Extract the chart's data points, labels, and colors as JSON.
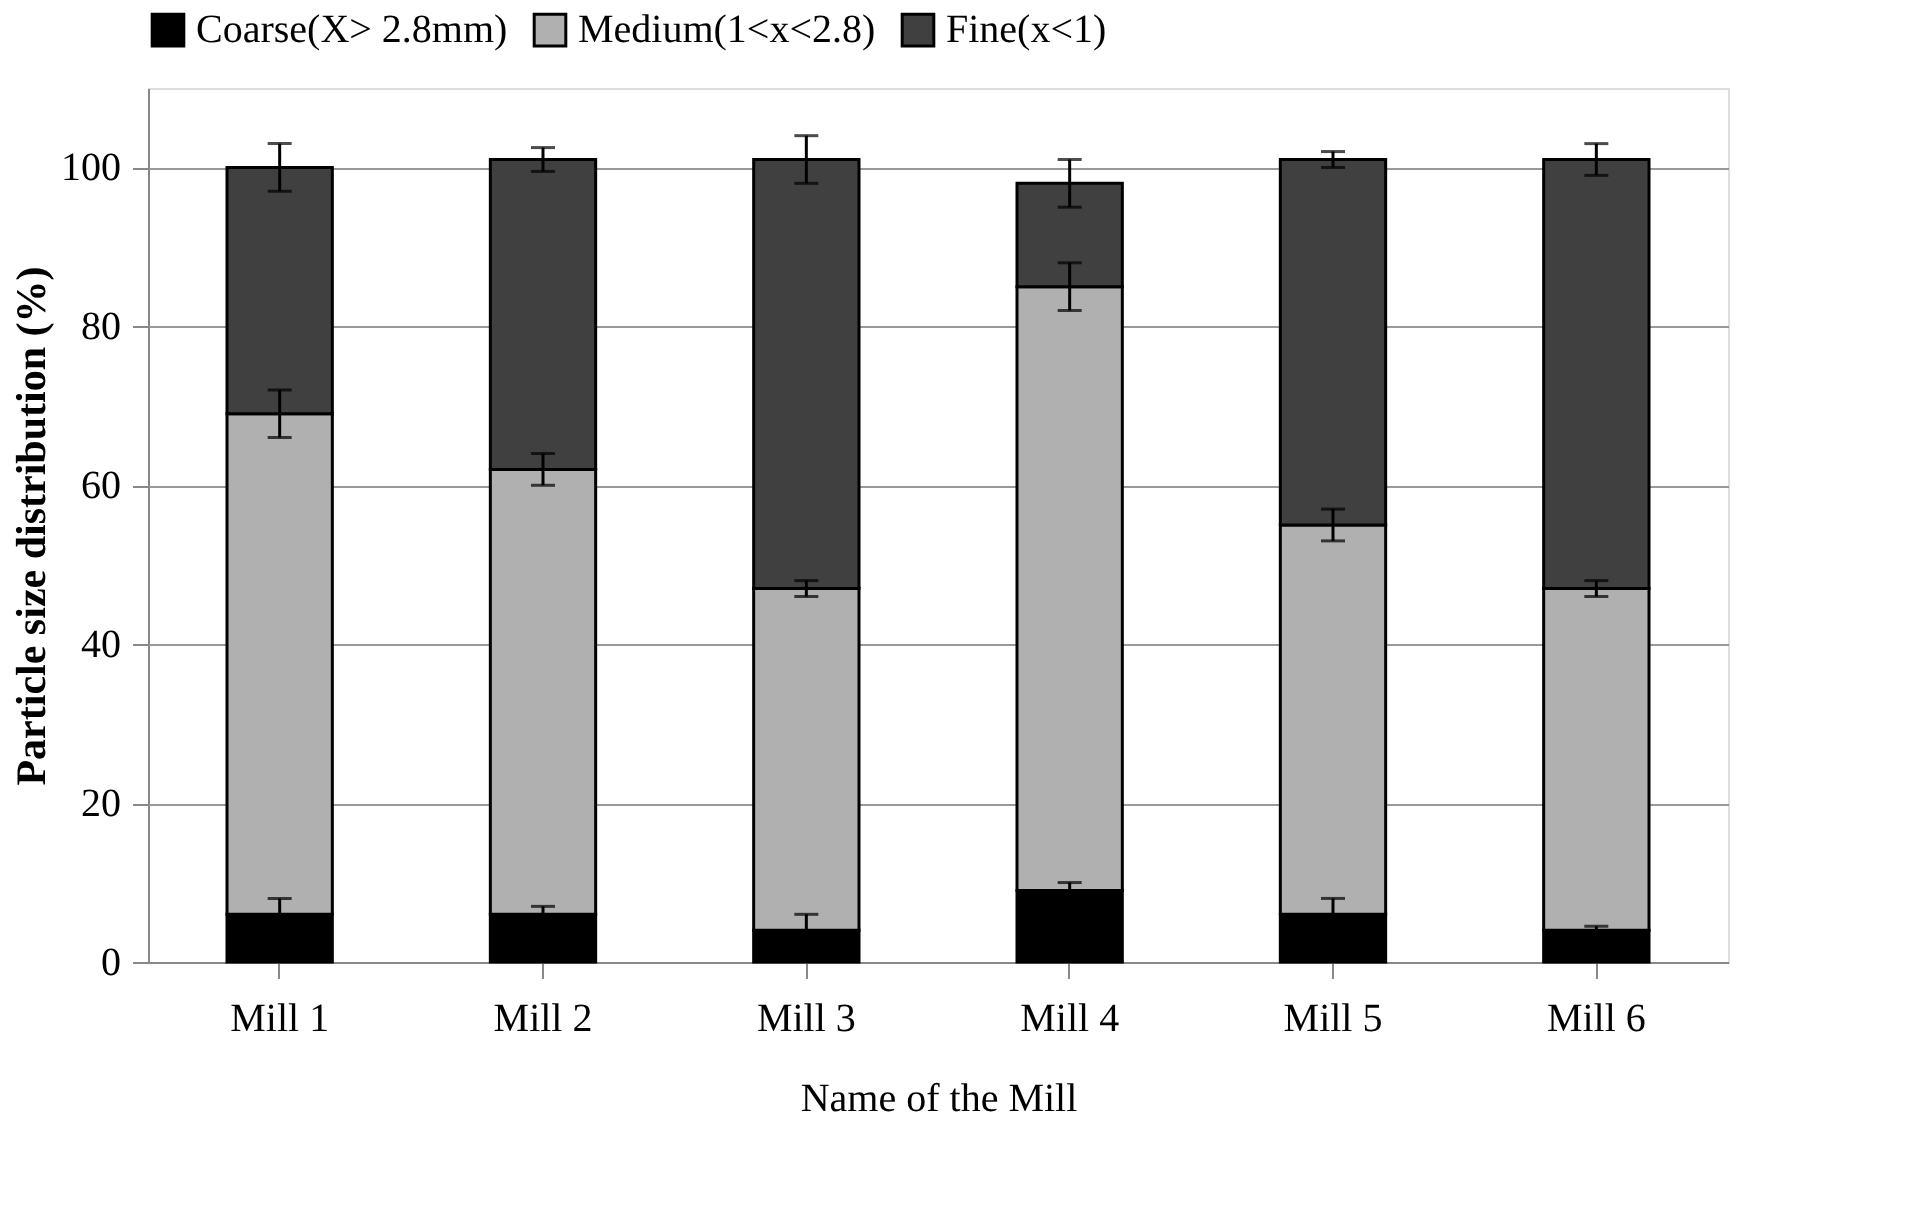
{
  "chart_data": {
    "type": "bar",
    "stacked": true,
    "xlabel": "Name of the Mill",
    "ylabel": "Particle size distribution (%)",
    "categories": [
      "Mill 1",
      "Mill 2",
      "Mill 3",
      "Mill 4",
      "Mill 5",
      "Mill 6"
    ],
    "series": [
      {
        "name": "Coarse(X> 2.8mm)",
        "color": "#000000",
        "values": [
          6,
          6,
          4,
          9,
          6,
          4
        ],
        "errors": [
          2,
          1,
          2,
          1,
          2,
          0.5
        ]
      },
      {
        "name": "Medium(1<x<2.8)",
        "color": "#b0b0b0",
        "values": [
          63,
          56,
          43,
          76,
          49,
          43
        ],
        "errors": [
          3,
          2,
          1,
          3,
          2,
          1
        ]
      },
      {
        "name": "Fine(x<1)",
        "color": "#404040",
        "values": [
          31,
          39,
          54,
          13,
          46,
          54
        ],
        "errors": [
          3,
          1.5,
          3,
          3,
          1,
          2
        ]
      }
    ],
    "ylim": [
      0,
      110
    ],
    "yticks": [
      0,
      20,
      40,
      60,
      80,
      100
    ],
    "grid": "y",
    "legend": "top"
  }
}
